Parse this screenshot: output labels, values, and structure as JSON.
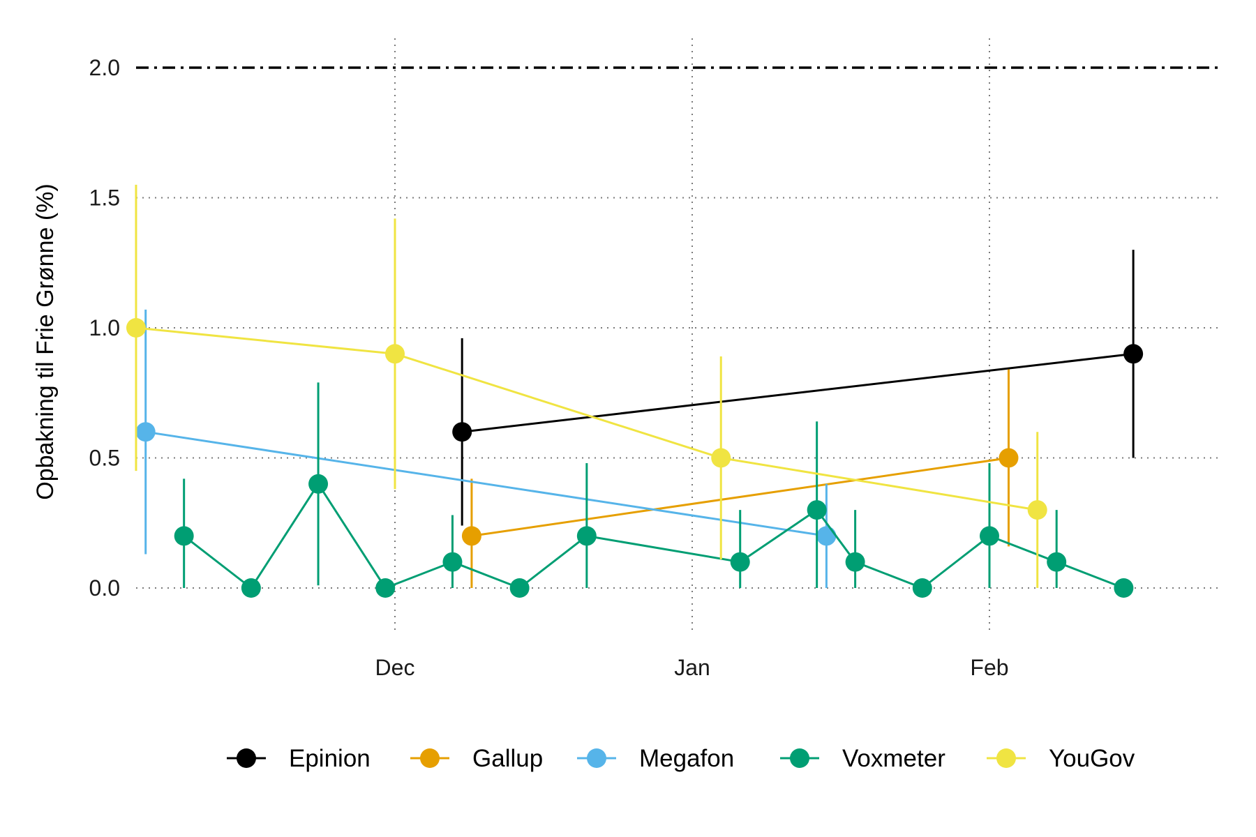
{
  "chart_data": {
    "type": "line",
    "title": "",
    "xlabel": "",
    "ylabel": "Opbakning til Frie Grønne (%)",
    "ylim": [
      0,
      2.0
    ],
    "yticks": [
      "0.0",
      "0.5",
      "1.0",
      "1.5",
      "2.0"
    ],
    "xticks": [
      {
        "label": "Dec",
        "date": "2021-12-01"
      },
      {
        "label": "Jan",
        "date": "2022-01-01"
      },
      {
        "label": "Feb",
        "date": "2022-02-01"
      }
    ],
    "xlim": [
      "2021-11-04",
      "2022-02-24"
    ],
    "grid": true,
    "reference_line": {
      "y": 2.0,
      "style": "dashed"
    },
    "legend_position": "bottom",
    "series": [
      {
        "name": "Epinion",
        "color": "#000000",
        "points": [
          {
            "x": "2021-12-08",
            "y": 0.6,
            "low": 0.24,
            "high": 0.96
          },
          {
            "x": "2022-02-16",
            "y": 0.9,
            "low": 0.5,
            "high": 1.3
          }
        ]
      },
      {
        "name": "Gallup",
        "color": "#E69F00",
        "points": [
          {
            "x": "2021-12-09",
            "y": 0.2,
            "low": 0.0,
            "high": 0.42
          },
          {
            "x": "2022-02-03",
            "y": 0.5,
            "low": 0.16,
            "high": 0.84
          }
        ]
      },
      {
        "name": "Megafon",
        "color": "#56B4E9",
        "points": [
          {
            "x": "2021-11-05",
            "y": 0.6,
            "low": 0.13,
            "high": 1.07
          },
          {
            "x": "2022-01-15",
            "y": 0.2,
            "low": 0.0,
            "high": 0.4
          }
        ]
      },
      {
        "name": "Voxmeter",
        "color": "#009E73",
        "points": [
          {
            "x": "2021-11-09",
            "y": 0.2,
            "low": 0.0,
            "high": 0.42
          },
          {
            "x": "2021-11-16",
            "y": 0.0
          },
          {
            "x": "2021-11-23",
            "y": 0.4,
            "low": 0.01,
            "high": 0.79
          },
          {
            "x": "2021-11-30",
            "y": 0.0
          },
          {
            "x": "2021-12-07",
            "y": 0.1,
            "low": 0.0,
            "high": 0.28
          },
          {
            "x": "2021-12-14",
            "y": 0.0
          },
          {
            "x": "2021-12-21",
            "y": 0.2,
            "low": 0.0,
            "high": 0.48
          },
          {
            "x": "2022-01-06",
            "y": 0.1,
            "low": 0.0,
            "high": 0.3
          },
          {
            "x": "2022-01-14",
            "y": 0.3,
            "low": 0.0,
            "high": 0.64
          },
          {
            "x": "2022-01-18",
            "y": 0.1,
            "low": 0.0,
            "high": 0.3
          },
          {
            "x": "2022-01-25",
            "y": 0.0
          },
          {
            "x": "2022-02-01",
            "y": 0.2,
            "low": 0.0,
            "high": 0.48
          },
          {
            "x": "2022-02-08",
            "y": 0.1,
            "low": 0.0,
            "high": 0.3
          },
          {
            "x": "2022-02-15",
            "y": 0.0
          }
        ]
      },
      {
        "name": "YouGov",
        "color": "#F0E442",
        "points": [
          {
            "x": "2021-11-04",
            "y": 1.0,
            "low": 0.45,
            "high": 1.55
          },
          {
            "x": "2021-12-01",
            "y": 0.9,
            "low": 0.38,
            "high": 1.42
          },
          {
            "x": "2022-01-04",
            "y": 0.5,
            "low": 0.11,
            "high": 0.89
          },
          {
            "x": "2022-02-06",
            "y": 0.3,
            "low": 0.0,
            "high": 0.6
          }
        ]
      }
    ]
  }
}
